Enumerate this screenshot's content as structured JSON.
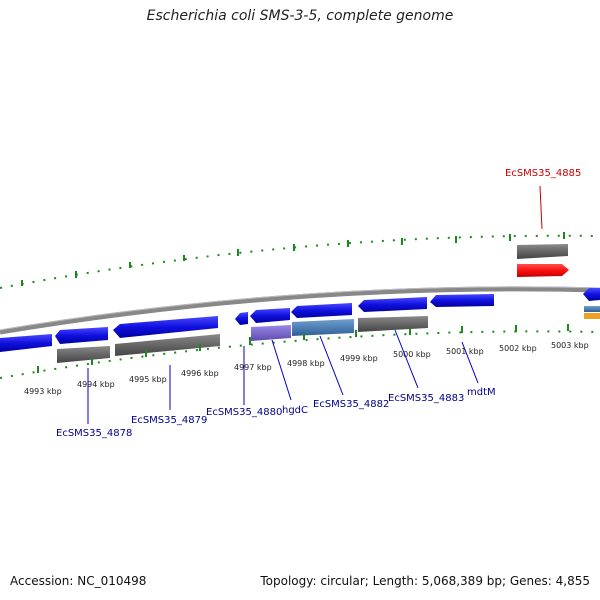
{
  "title": "Escherichia coli SMS-3-5, complete genome",
  "footer": {
    "accession": "Accession: NC_010498",
    "summary": "Topology: circular; Length: 5,068,389 bp; Genes: 4,855"
  },
  "axis": {
    "inner_tick_labels": [
      "4993 kbp",
      "4994 kbp",
      "4995 kbp",
      "4996 kbp",
      "4997 kbp",
      "4998 kbp",
      "4999 kbp",
      "5000 kbp",
      "5001 kbp",
      "5002 kbp",
      "5003 kbp"
    ]
  },
  "gene_labels": [
    {
      "text": "EcSMS35_4878",
      "color": "#00008b"
    },
    {
      "text": "EcSMS35_4879",
      "color": "#00008b"
    },
    {
      "text": "EcSMS35_4880",
      "color": "#00008b"
    },
    {
      "text": "hgdC",
      "color": "#00008b"
    },
    {
      "text": "EcSMS35_4882",
      "color": "#00008b"
    },
    {
      "text": "EcSMS35_4883",
      "color": "#00008b"
    },
    {
      "text": "mdtM",
      "color": "#00008b"
    },
    {
      "text": "EcSMS35_4885",
      "color": "#cc0000"
    }
  ],
  "colors": {
    "cds_forward": "#1010e0",
    "cds_gray": "#666666",
    "cds_red": "#ff1010",
    "cds_purple": "#7a66cc",
    "cds_steel": "#4a7fb5",
    "cds_orange": "#f0a020",
    "tick_green": "#1a8a1a",
    "backbone": "#888888"
  }
}
